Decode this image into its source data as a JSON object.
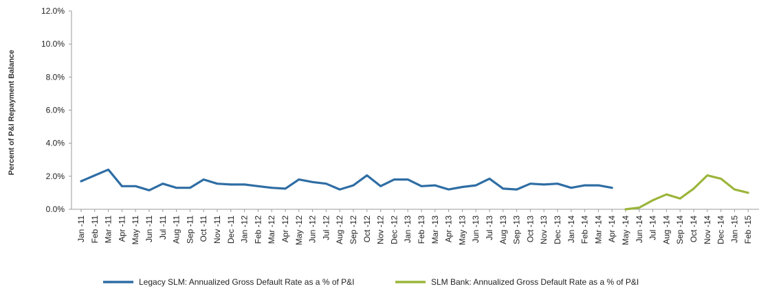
{
  "chart_data": {
    "type": "line",
    "title": "",
    "xlabel": "",
    "ylabel": "Percent of P&I Repayment Balance",
    "ylim": [
      0,
      12
    ],
    "yticks": [
      "0.0%",
      "2.0%",
      "4.0%",
      "6.0%",
      "8.0%",
      "10.0%",
      "12.0%"
    ],
    "ytick_values": [
      0,
      2,
      4,
      6,
      8,
      10,
      12
    ],
    "grid": false,
    "legend_position": "bottom",
    "categories": [
      "Jan -11",
      "Feb -11",
      "Mar -11",
      "Apr -11",
      "May -11",
      "Jun -11",
      "Jul -11",
      "Aug -11",
      "Sep -11",
      "Oct -11",
      "Nov -11",
      "Dec -11",
      "Jan -12",
      "Feb -12",
      "Mar -12",
      "Apr -12",
      "May -12",
      "Jun -12",
      "Jul -12",
      "Aug -12",
      "Sep -12",
      "Oct -12",
      "Nov -12",
      "Dec -12",
      "Jan -13",
      "Feb -13",
      "Mar -13",
      "Apr -13",
      "May -13",
      "Jun -13",
      "Jul -13",
      "Aug -13",
      "Sep -13",
      "Oct -13",
      "Nov -13",
      "Dec -13",
      "Jan -14",
      "Feb -14",
      "Mar -14",
      "Apr -14",
      "May -14",
      "Jun -14",
      "Jul -14",
      "Aug -14",
      "Sep -14",
      "Oct -14",
      "Nov -14",
      "Dec -14",
      "Jan -15",
      "Feb -15"
    ],
    "series": [
      {
        "name": "Legacy SLM: Annualized Gross Default Rate as a % of P&I",
        "color": "#2e6da4",
        "values": [
          1.7,
          2.05,
          2.4,
          1.4,
          1.4,
          1.15,
          1.55,
          1.3,
          1.3,
          1.8,
          1.55,
          1.5,
          1.5,
          1.4,
          1.3,
          1.25,
          1.8,
          1.65,
          1.55,
          1.2,
          1.45,
          2.05,
          1.4,
          1.8,
          1.8,
          1.4,
          1.45,
          1.2,
          1.35,
          1.45,
          1.85,
          1.25,
          1.2,
          1.55,
          1.5,
          1.55,
          1.3,
          1.45,
          1.45,
          1.3,
          null,
          null,
          null,
          null,
          null,
          null,
          null,
          null,
          null,
          null
        ]
      },
      {
        "name": "SLM Bank: Annualized Gross Default Rate as a % of P&I",
        "color": "#9bb53a",
        "values": [
          null,
          null,
          null,
          null,
          null,
          null,
          null,
          null,
          null,
          null,
          null,
          null,
          null,
          null,
          null,
          null,
          null,
          null,
          null,
          null,
          null,
          null,
          null,
          null,
          null,
          null,
          null,
          null,
          null,
          null,
          null,
          null,
          null,
          null,
          null,
          null,
          null,
          null,
          null,
          null,
          0.0,
          0.1,
          0.55,
          0.9,
          0.65,
          1.25,
          2.05,
          1.85,
          1.2,
          1.0
        ]
      }
    ]
  }
}
